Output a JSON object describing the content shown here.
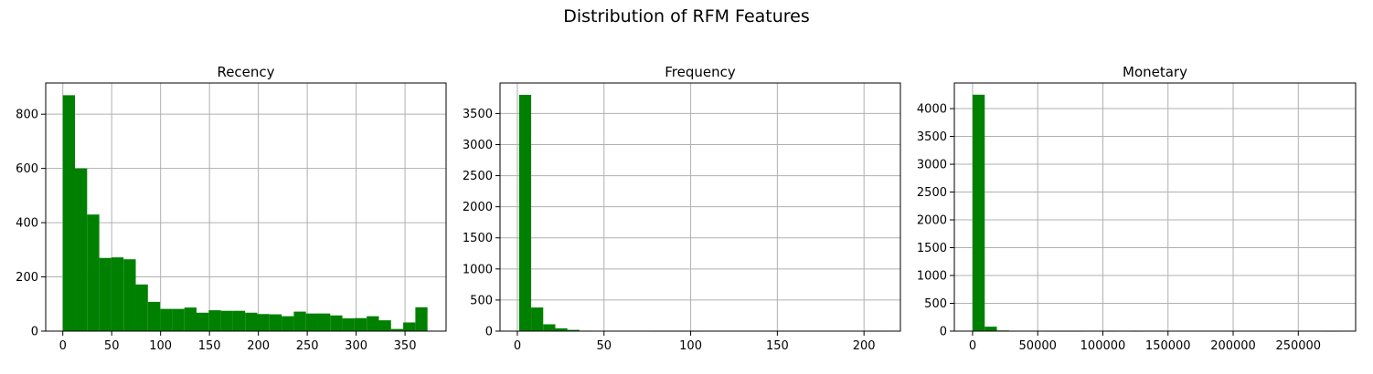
{
  "figure": {
    "title": "Distribution of RFM Features",
    "bar_color": "#008000",
    "grid_color": "#b0b0b0"
  },
  "chart_data": [
    {
      "type": "bar",
      "title": "Recency",
      "bin_edges": [
        0,
        12.43,
        24.87,
        37.3,
        49.73,
        62.17,
        74.6,
        87.03,
        99.47,
        111.9,
        124.33,
        136.77,
        149.2,
        161.63,
        174.07,
        186.5,
        198.93,
        211.37,
        223.8,
        236.23,
        248.67,
        261.1,
        273.53,
        285.97,
        298.4,
        310.83,
        323.27,
        335.7,
        348.13,
        360.57,
        373
      ],
      "values": [
        870,
        600,
        430,
        270,
        272,
        265,
        172,
        108,
        82,
        82,
        87,
        68,
        77,
        75,
        75,
        68,
        63,
        62,
        55,
        72,
        65,
        65,
        58,
        47,
        48,
        55,
        40,
        8,
        32,
        88
      ],
      "xlim": [
        -17.5,
        392
      ],
      "ylim": [
        0,
        915
      ],
      "xticks": [
        0,
        50,
        100,
        150,
        200,
        250,
        300,
        350
      ],
      "yticks": [
        0,
        200,
        400,
        600,
        800
      ],
      "xtick_labels": [
        "0",
        "50",
        "100",
        "150",
        "200",
        "250",
        "300",
        "350"
      ],
      "ytick_labels": [
        "0",
        "200",
        "400",
        "600",
        "800"
      ],
      "grid": true
    },
    {
      "type": "bar",
      "title": "Frequency",
      "bin_edges": [
        1,
        7.97,
        14.93,
        21.9,
        28.87,
        35.83,
        42.8,
        49.77,
        56.73,
        63.7,
        70.67,
        77.63,
        84.6,
        91.57,
        98.53,
        105.5,
        112.47,
        119.43,
        126.4,
        133.37,
        140.33,
        147.3,
        154.27,
        161.23,
        168.2,
        175.17,
        182.13,
        189.1,
        196.07,
        203.03,
        210
      ],
      "values": [
        3800,
        380,
        110,
        45,
        20,
        8,
        6,
        4,
        3,
        2,
        2,
        1,
        1,
        1,
        1,
        0,
        0,
        0,
        0,
        0,
        0,
        0,
        0,
        0,
        0,
        0,
        0,
        0,
        0,
        1
      ],
      "xlim": [
        -10,
        221
      ],
      "ylim": [
        0,
        3990
      ],
      "xticks": [
        0,
        50,
        100,
        150,
        200
      ],
      "yticks": [
        0,
        500,
        1000,
        1500,
        2000,
        2500,
        3000,
        3500
      ],
      "xtick_labels": [
        "0",
        "50",
        "100",
        "150",
        "200"
      ],
      "ytick_labels": [
        "0",
        "500",
        "1000",
        "1500",
        "2000",
        "2500",
        "3000",
        "3500"
      ],
      "grid": true
    },
    {
      "type": "bar",
      "title": "Monetary",
      "bin_edges": [
        0,
        9333,
        18667,
        28000,
        37333,
        46667,
        56000,
        65333,
        74667,
        84000,
        93333,
        102667,
        112000,
        121333,
        130667,
        140000,
        149333,
        158667,
        168000,
        177333,
        186667,
        196000,
        205333,
        214667,
        224000,
        233333,
        242667,
        252000,
        261333,
        270667,
        280000
      ],
      "values": [
        4250,
        80,
        12,
        6,
        3,
        2,
        1,
        1,
        1,
        0,
        0,
        1,
        0,
        1,
        0,
        0,
        0,
        0,
        0,
        0,
        0,
        0,
        0,
        0,
        0,
        0,
        0,
        0,
        0,
        1
      ],
      "xlim": [
        -14000,
        294000
      ],
      "ylim": [
        0,
        4460
      ],
      "xticks": [
        0,
        50000,
        100000,
        150000,
        200000,
        250000
      ],
      "yticks": [
        0,
        500,
        1000,
        1500,
        2000,
        2500,
        3000,
        3500,
        4000
      ],
      "xtick_labels": [
        "0",
        "50000",
        "100000",
        "150000",
        "200000",
        "250000"
      ],
      "ytick_labels": [
        "0",
        "500",
        "1000",
        "1500",
        "2000",
        "2500",
        "3000",
        "3500",
        "4000"
      ],
      "grid": true
    }
  ]
}
